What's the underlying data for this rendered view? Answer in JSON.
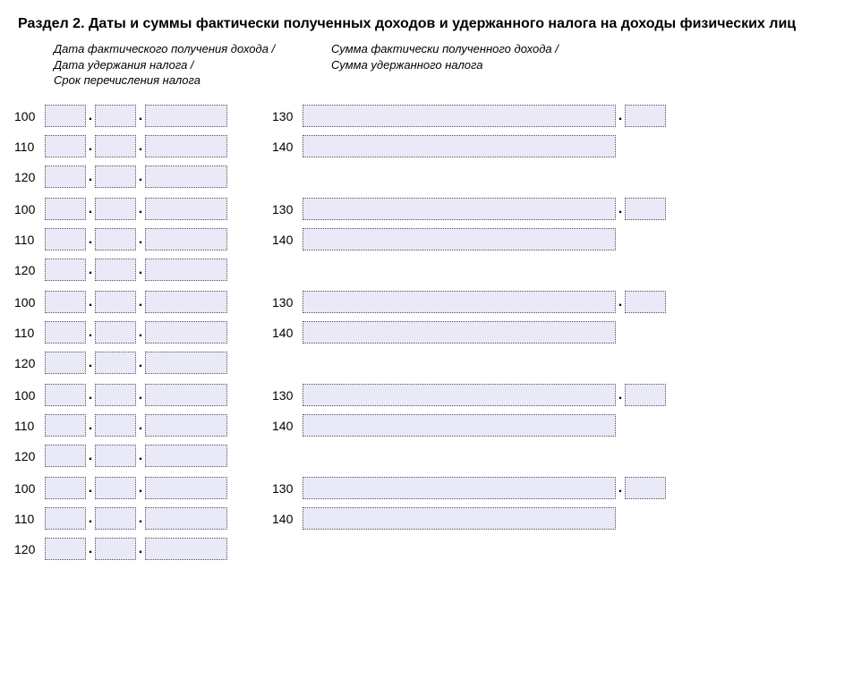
{
  "title": "Раздел 2. Даты и суммы фактически полученных доходов и удержанного налога на доходы физических лиц",
  "subheader_left": "Дата фактического получения дохода /\nДата удержания налога /\nСрок перечисления налога",
  "subheader_right": "Сумма фактически полученного дохода /\nСумма удержанного налога",
  "codes": {
    "r1": "100",
    "r2": "110",
    "r3": "120",
    "s1": "130",
    "s2": "140"
  },
  "field_bg": "#e9e9f8",
  "border_color": "#555555",
  "dot": ".",
  "block_count": 5
}
